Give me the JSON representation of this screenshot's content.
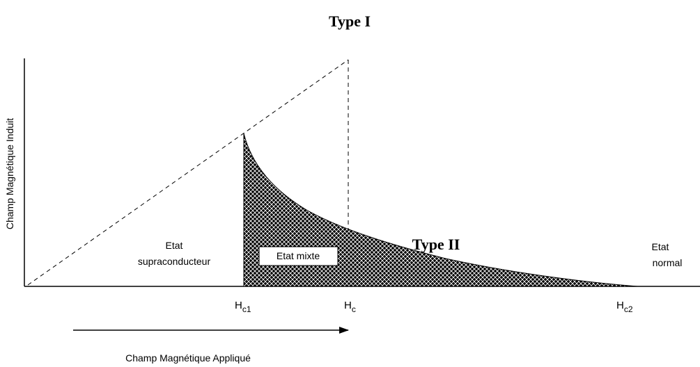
{
  "title": "Type I",
  "curve_label": "Type II",
  "y_axis_label": "Champ Magnétique Induit",
  "x_axis_label": "Champ Magnétique Appliqué",
  "regions": {
    "superconducting": [
      "Etat",
      "supraconducteur"
    ],
    "mixed": "Etat mixte",
    "normal": [
      "Etat",
      "normal"
    ]
  },
  "fields": [
    {
      "symbol": "H",
      "subscript": "c1"
    },
    {
      "symbol": "H",
      "subscript": "c"
    },
    {
      "symbol": "H",
      "subscript": "c2"
    }
  ]
}
